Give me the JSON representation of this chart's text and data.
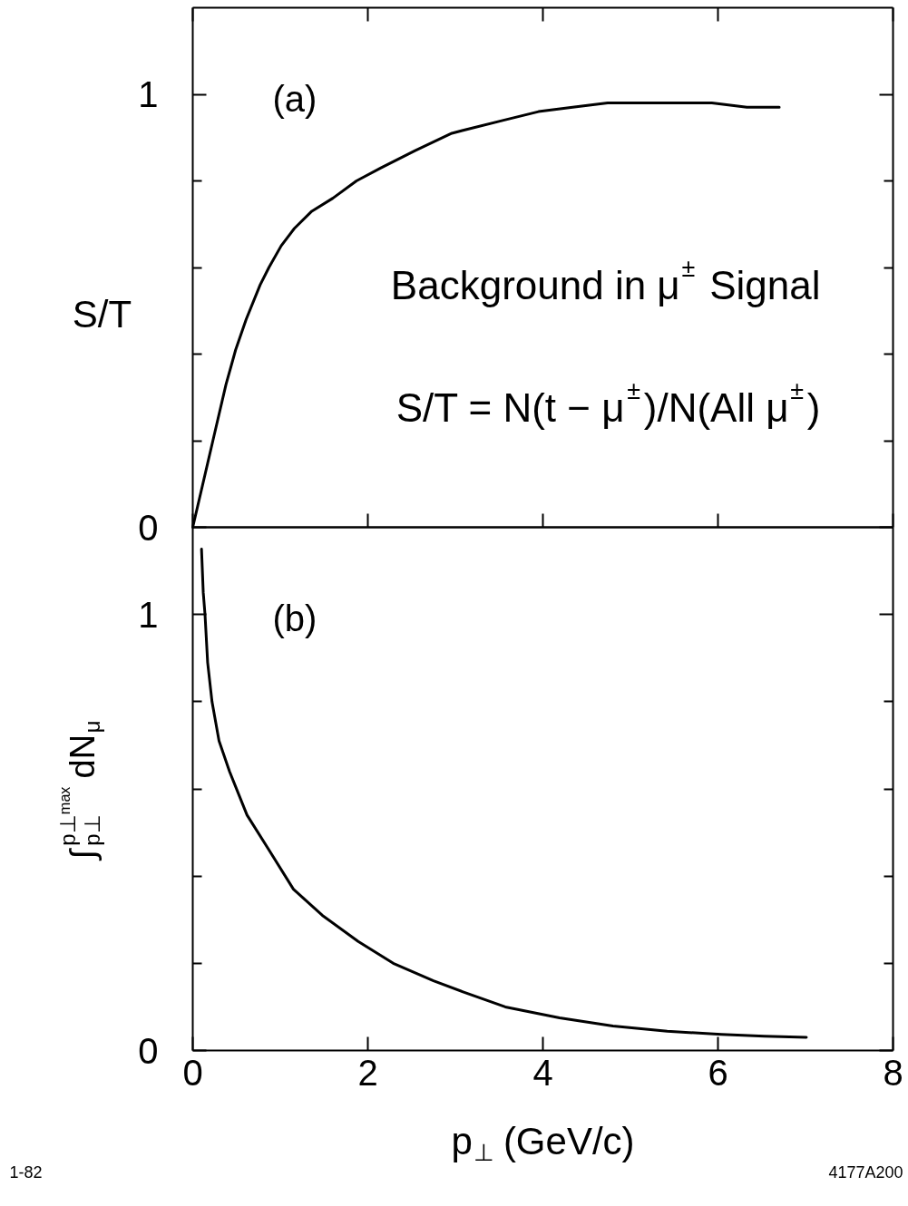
{
  "chart_data": [
    {
      "type": "line",
      "title": "(a)",
      "ylabel": "S/T",
      "annotations": [
        "Background in μ$^{±}$ Signal",
        "S/T = N(t − μ$^{±}$)/N(All μ$^{±}$)"
      ],
      "x": [
        0,
        0.23,
        0.38,
        0.49,
        0.61,
        0.77,
        0.87,
        1.01,
        1.16,
        1.36,
        1.6,
        1.87,
        2.15,
        2.54,
        2.96,
        3.15,
        3.55,
        3.95,
        4.34,
        4.74,
        5.14,
        5.53,
        5.93,
        6.33,
        6.7
      ],
      "series": [
        {
          "color": "#000000",
          "values": [
            0,
            0.2,
            0.33,
            0.41,
            0.48,
            0.56,
            0.6,
            0.65,
            0.69,
            0.73,
            0.76,
            0.8,
            0.83,
            0.87,
            0.91,
            0.92,
            0.94,
            0.96,
            0.97,
            0.98,
            0.98,
            0.98,
            0.98,
            0.97,
            0.97
          ]
        }
      ],
      "xlim": [
        0,
        8
      ],
      "xticks": [
        0,
        2,
        4,
        6,
        8
      ],
      "ylim": [
        0,
        1.2
      ],
      "yticks": [
        0,
        {
          "value": 0.2,
          "label": null
        },
        {
          "value": 0.4,
          "label": null
        },
        {
          "value": 0.6,
          "label": null
        },
        {
          "value": 0.8,
          "label": null
        },
        1
      ],
      "tick_labels": "y"
    },
    {
      "type": "line",
      "title": "(b)",
      "xlabel": "p$_{⊥}$ (GeV/c)",
      "ylabel": "∫$_{p⊥}$$^{p⊥ᵐᵃˣ}$ dN$_{μ}$",
      "annotations": [
        "1-82",
        "4177A200"
      ],
      "x": [
        0.1,
        0.12,
        0.14,
        0.17,
        0.22,
        0.3,
        0.42,
        0.62,
        0.87,
        1.15,
        1.48,
        1.89,
        2.29,
        2.75,
        3.08,
        3.57,
        4.19,
        4.8,
        5.42,
        6.04,
        6.53,
        7.01
      ],
      "series": [
        {
          "color": "#000000",
          "values": [
            1.15,
            1.05,
            1.0,
            0.89,
            0.8,
            0.71,
            0.64,
            0.54,
            0.46,
            0.37,
            0.31,
            0.25,
            0.2,
            0.16,
            0.135,
            0.1,
            0.075,
            0.056,
            0.044,
            0.037,
            0.033,
            0.03
          ]
        }
      ],
      "xlim": [
        0,
        8
      ],
      "xticks": [
        0,
        2,
        4,
        6,
        8
      ],
      "ylim": [
        0,
        1.2
      ],
      "yticks": [
        0,
        {
          "value": 0.2,
          "label": null
        },
        {
          "value": 0.4,
          "label": null
        },
        {
          "value": 0.6,
          "label": null
        },
        {
          "value": 0.8,
          "label": null
        },
        1
      ]
    }
  ]
}
